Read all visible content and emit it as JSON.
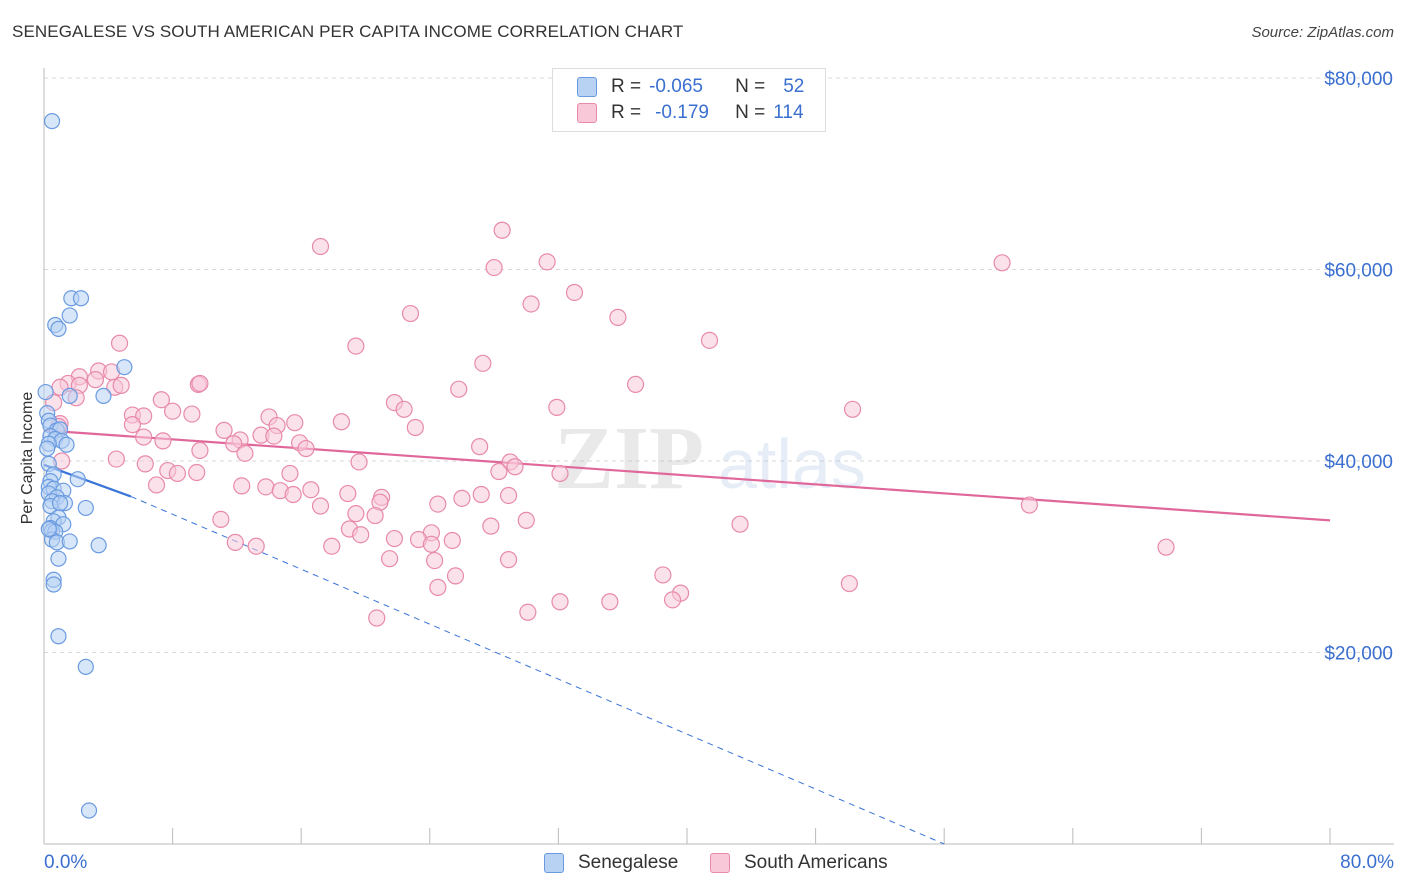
{
  "title": "SENEGALESE VS SOUTH AMERICAN PER CAPITA INCOME CORRELATION CHART",
  "source": "Source: ZipAtlas.com",
  "watermark": {
    "zip": "ZIP",
    "atlas": "atlas"
  },
  "legend_top": {
    "series1": {
      "r_label": "R =",
      "r_value": "-0.065",
      "n_label": "N =",
      "n_value": "52"
    },
    "series2": {
      "r_label": "R =",
      "r_value": "-0.179",
      "n_label": "N =",
      "n_value": "114"
    }
  },
  "legend_bottom": {
    "series1": "Senegalese",
    "series2": "South Americans"
  },
  "colors": {
    "blue_fill": "#b8d2f4",
    "blue_stroke": "#6a9be0",
    "blue_line": "#3a74d8",
    "pink_fill": "#f8c8d8",
    "pink_stroke": "#e88aaa",
    "pink_line": "#e0679a",
    "axis_text": "#3a6fd0"
  },
  "chart_data": {
    "type": "scatter",
    "title": "SENEGALESE VS SOUTH AMERICAN PER CAPITA INCOME CORRELATION CHART",
    "xlabel": "",
    "ylabel": "Per Capita Income",
    "xlim": [
      0,
      80
    ],
    "ylim": [
      0,
      80000
    ],
    "x_tick_labels": [
      "0.0%",
      "80.0%"
    ],
    "y_ticks": [
      20000,
      40000,
      60000,
      80000
    ],
    "y_tick_labels": [
      "$20,000",
      "$40,000",
      "$60,000",
      "$80,000"
    ],
    "grid": true,
    "legend_position": "top-center",
    "series": [
      {
        "name": "Senegalese",
        "r": -0.065,
        "n": 52,
        "trend_solid": [
          [
            0.0,
            39600
          ],
          [
            5.4,
            36300
          ]
        ],
        "trend_dashed": [
          [
            5.4,
            36300
          ],
          [
            56.0,
            0
          ]
        ],
        "points": [
          [
            0.5,
            75500
          ],
          [
            1.7,
            57000
          ],
          [
            2.3,
            57000
          ],
          [
            0.7,
            54200
          ],
          [
            1.6,
            55200
          ],
          [
            0.9,
            53800
          ],
          [
            5.0,
            49800
          ],
          [
            3.7,
            46800
          ],
          [
            1.6,
            46800
          ],
          [
            0.1,
            47200
          ],
          [
            0.2,
            45000
          ],
          [
            0.3,
            44200
          ],
          [
            0.4,
            43700
          ],
          [
            0.8,
            43200
          ],
          [
            1.0,
            43300
          ],
          [
            0.4,
            42600
          ],
          [
            0.7,
            42300
          ],
          [
            1.1,
            42100
          ],
          [
            0.3,
            41800
          ],
          [
            1.4,
            41700
          ],
          [
            0.2,
            41300
          ],
          [
            0.3,
            39700
          ],
          [
            0.6,
            38600
          ],
          [
            2.1,
            38100
          ],
          [
            0.4,
            37900
          ],
          [
            0.3,
            37300
          ],
          [
            0.6,
            37100
          ],
          [
            1.2,
            36900
          ],
          [
            0.3,
            36600
          ],
          [
            0.8,
            36200
          ],
          [
            0.5,
            35800
          ],
          [
            1.3,
            35600
          ],
          [
            0.4,
            35300
          ],
          [
            1.0,
            35600
          ],
          [
            2.6,
            35100
          ],
          [
            0.9,
            34100
          ],
          [
            0.6,
            33700
          ],
          [
            1.2,
            33400
          ],
          [
            0.4,
            33000
          ],
          [
            0.5,
            32700
          ],
          [
            0.7,
            32600
          ],
          [
            0.5,
            31800
          ],
          [
            0.8,
            31500
          ],
          [
            1.6,
            31600
          ],
          [
            3.4,
            31200
          ],
          [
            0.9,
            29800
          ],
          [
            0.6,
            27600
          ],
          [
            0.6,
            27100
          ],
          [
            0.9,
            21700
          ],
          [
            2.6,
            18500
          ],
          [
            2.8,
            3500
          ],
          [
            0.3,
            32900
          ]
        ]
      },
      {
        "name": "South Americans",
        "r": -0.179,
        "n": 114,
        "trend_solid": [
          [
            0.0,
            43200
          ],
          [
            80.0,
            33800
          ]
        ],
        "points": [
          [
            28.5,
            64100
          ],
          [
            17.2,
            62400
          ],
          [
            28.0,
            60200
          ],
          [
            31.3,
            60800
          ],
          [
            59.6,
            60700
          ],
          [
            33.0,
            57600
          ],
          [
            30.3,
            56400
          ],
          [
            22.8,
            55400
          ],
          [
            35.7,
            55000
          ],
          [
            41.4,
            52600
          ],
          [
            19.4,
            52000
          ],
          [
            4.7,
            52300
          ],
          [
            27.3,
            50200
          ],
          [
            3.4,
            49400
          ],
          [
            4.2,
            49300
          ],
          [
            2.2,
            48800
          ],
          [
            3.2,
            48500
          ],
          [
            1.5,
            48100
          ],
          [
            2.2,
            47900
          ],
          [
            4.4,
            47700
          ],
          [
            4.8,
            47900
          ],
          [
            9.6,
            48000
          ],
          [
            9.7,
            48100
          ],
          [
            25.8,
            47500
          ],
          [
            36.8,
            48000
          ],
          [
            2.0,
            46600
          ],
          [
            7.3,
            46400
          ],
          [
            21.8,
            46100
          ],
          [
            22.4,
            45400
          ],
          [
            31.9,
            45600
          ],
          [
            50.3,
            45400
          ],
          [
            8.0,
            45200
          ],
          [
            9.2,
            44900
          ],
          [
            5.5,
            44800
          ],
          [
            6.2,
            44700
          ],
          [
            14.0,
            44600
          ],
          [
            1.0,
            43900
          ],
          [
            15.6,
            44000
          ],
          [
            0.9,
            43600
          ],
          [
            5.5,
            43800
          ],
          [
            11.2,
            43200
          ],
          [
            14.5,
            43700
          ],
          [
            18.5,
            44100
          ],
          [
            23.1,
            43500
          ],
          [
            6.2,
            42500
          ],
          [
            13.5,
            42700
          ],
          [
            7.4,
            42100
          ],
          [
            14.3,
            42600
          ],
          [
            12.2,
            42200
          ],
          [
            15.9,
            41900
          ],
          [
            11.8,
            41800
          ],
          [
            16.3,
            41300
          ],
          [
            27.1,
            41500
          ],
          [
            9.7,
            41100
          ],
          [
            12.5,
            40800
          ],
          [
            1.1,
            40000
          ],
          [
            4.5,
            40200
          ],
          [
            19.6,
            39900
          ],
          [
            29.0,
            39900
          ],
          [
            6.3,
            39700
          ],
          [
            7.7,
            39000
          ],
          [
            9.5,
            38800
          ],
          [
            8.3,
            38700
          ],
          [
            15.3,
            38700
          ],
          [
            28.3,
            38900
          ],
          [
            29.3,
            39400
          ],
          [
            32.1,
            38700
          ],
          [
            7.0,
            37500
          ],
          [
            12.3,
            37400
          ],
          [
            13.8,
            37300
          ],
          [
            14.7,
            36900
          ],
          [
            16.6,
            37000
          ],
          [
            15.5,
            36500
          ],
          [
            18.9,
            36600
          ],
          [
            21.0,
            36200
          ],
          [
            26.0,
            36100
          ],
          [
            27.2,
            36500
          ],
          [
            28.9,
            36400
          ],
          [
            20.9,
            35700
          ],
          [
            24.5,
            35500
          ],
          [
            17.2,
            35300
          ],
          [
            20.6,
            34300
          ],
          [
            19.4,
            34500
          ],
          [
            11.0,
            33900
          ],
          [
            30.0,
            33800
          ],
          [
            43.3,
            33400
          ],
          [
            61.3,
            35400
          ],
          [
            19.0,
            32900
          ],
          [
            19.7,
            32300
          ],
          [
            24.1,
            32500
          ],
          [
            23.3,
            31800
          ],
          [
            25.4,
            31700
          ],
          [
            27.8,
            33200
          ],
          [
            11.9,
            31500
          ],
          [
            13.2,
            31100
          ],
          [
            17.9,
            31100
          ],
          [
            24.1,
            31300
          ],
          [
            21.8,
            31900
          ],
          [
            21.5,
            29800
          ],
          [
            24.3,
            29600
          ],
          [
            28.9,
            29700
          ],
          [
            25.6,
            28000
          ],
          [
            24.5,
            26800
          ],
          [
            38.5,
            28100
          ],
          [
            39.6,
            26200
          ],
          [
            50.1,
            27200
          ],
          [
            32.1,
            25300
          ],
          [
            35.2,
            25300
          ],
          [
            30.1,
            24200
          ],
          [
            39.1,
            25500
          ],
          [
            69.8,
            31000
          ],
          [
            20.7,
            23600
          ],
          [
            1.0,
            47700
          ],
          [
            0.6,
            46100
          ]
        ]
      }
    ]
  }
}
